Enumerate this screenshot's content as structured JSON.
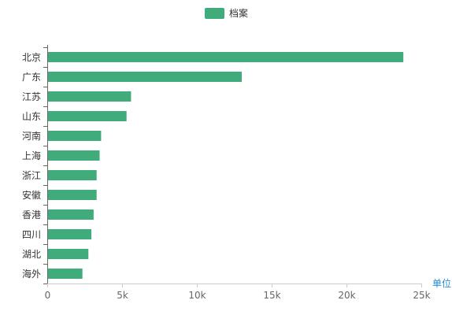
{
  "chart_data": {
    "type": "bar",
    "orientation": "horizontal",
    "categories": [
      "北京",
      "广东",
      "江苏",
      "山东",
      "河南",
      "上海",
      "浙江",
      "安徽",
      "香港",
      "四川",
      "湖北",
      "海外"
    ],
    "series": [
      {
        "name": "档案",
        "values": [
          23800,
          13000,
          5600,
          5300,
          3600,
          3500,
          3300,
          3300,
          3100,
          2950,
          2750,
          2350
        ],
        "color": "#40ac7b"
      }
    ],
    "xlim": [
      0,
      25000
    ],
    "xticks": [
      0,
      5000,
      10000,
      15000,
      20000,
      25000
    ],
    "xtick_labels": [
      "0",
      "5k",
      "10k",
      "15k",
      "20k",
      "25k"
    ],
    "xlabel": "单位",
    "xlabel_color": "#1f8dd6",
    "legend_position": "top-center",
    "grid": false
  }
}
